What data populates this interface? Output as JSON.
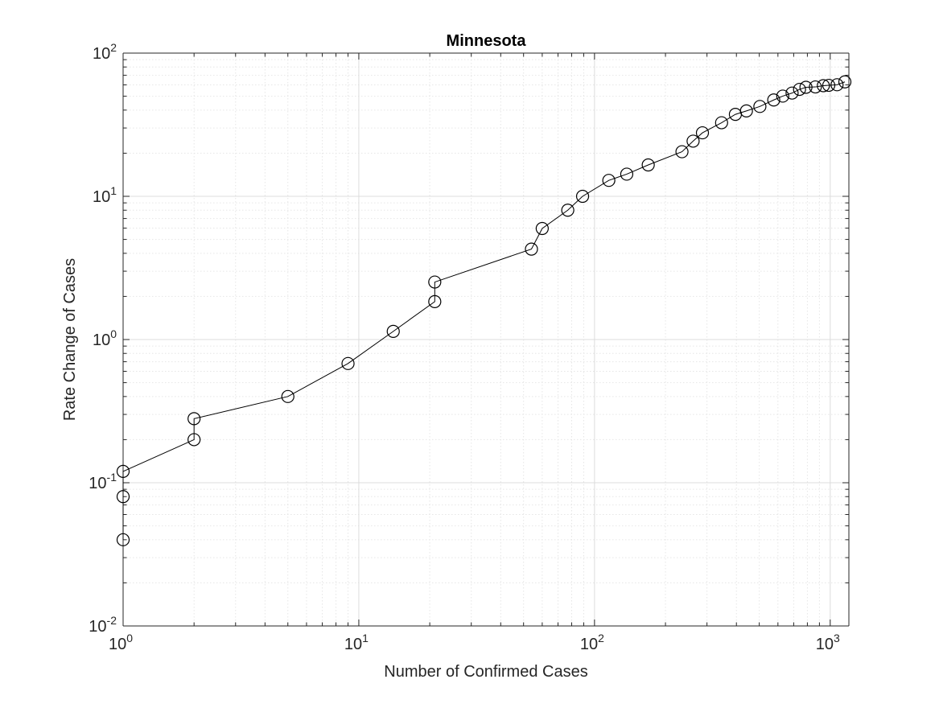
{
  "chart_data": {
    "type": "line",
    "title": "Minnesota",
    "xlabel": "Number of Confirmed Cases",
    "ylabel": "Rate Change of Cases",
    "x_scale": "log",
    "y_scale": "log",
    "xlim": [
      1,
      1200
    ],
    "ylim": [
      0.01,
      100
    ],
    "grid": true,
    "minor_grid": true,
    "marker": "open-circle",
    "colors": {
      "line": "#000000",
      "marker": "#000000",
      "grid_major": "#dcdcdc",
      "grid_minor": "#e6e6e6",
      "axes": "#262626"
    },
    "x_ticks": [
      {
        "base": "10",
        "exp": "0",
        "value": 1
      },
      {
        "base": "10",
        "exp": "1",
        "value": 10
      },
      {
        "base": "10",
        "exp": "2",
        "value": 100
      },
      {
        "base": "10",
        "exp": "3",
        "value": 1000
      }
    ],
    "y_ticks": [
      {
        "base": "10",
        "exp": "-2",
        "value": 0.01
      },
      {
        "base": "10",
        "exp": "-1",
        "value": 0.1
      },
      {
        "base": "10",
        "exp": "0",
        "value": 1
      },
      {
        "base": "10",
        "exp": "1",
        "value": 10
      },
      {
        "base": "10",
        "exp": "2",
        "value": 100
      }
    ],
    "series": [
      {
        "x": [
          1,
          1,
          1,
          2,
          2,
          5,
          9,
          14,
          21,
          21,
          54,
          60,
          77,
          89,
          115,
          137,
          169,
          235,
          262,
          287,
          346,
          396,
          441,
          503,
          576,
          629,
          689,
          741,
          789,
          865,
          935,
          986,
          1069,
          1154
        ],
        "y": [
          0.04,
          0.08,
          0.12,
          0.2,
          0.28,
          0.4,
          0.68,
          1.14,
          1.84,
          2.52,
          4.28,
          5.96,
          8.0,
          10.0,
          12.92,
          14.28,
          16.56,
          20.48,
          24.28,
          27.76,
          32.64,
          37.36,
          39.48,
          42.4,
          47.08,
          50.08,
          52.6,
          55.84,
          57.72,
          58.04,
          59.24,
          59.56,
          60.12,
          63.0
        ]
      }
    ]
  }
}
